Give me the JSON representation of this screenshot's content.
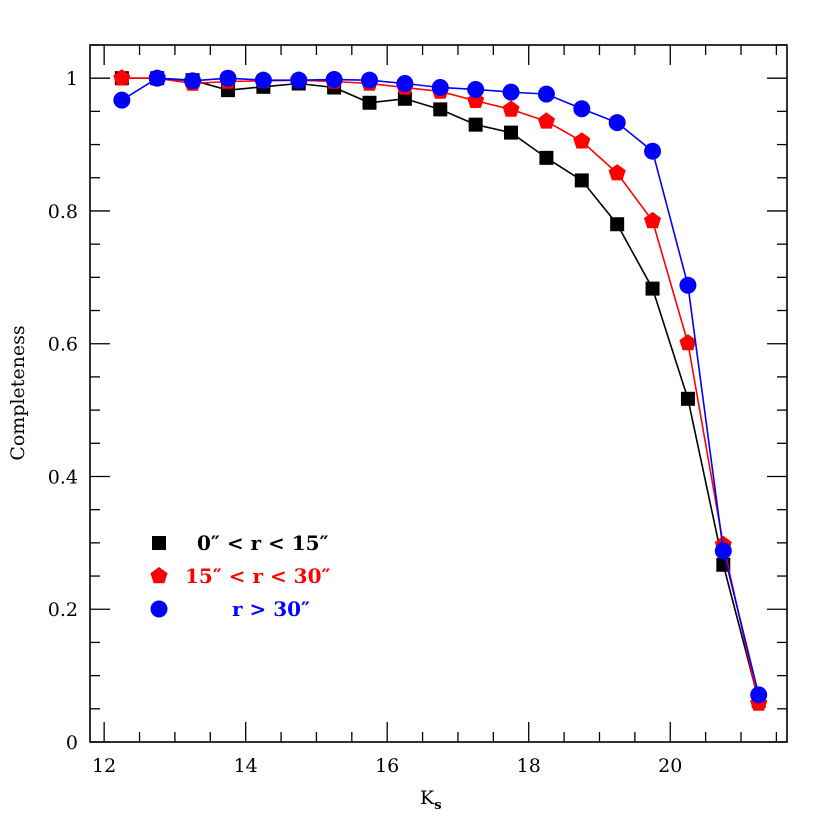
{
  "chart_data": {
    "type": "line",
    "title": "",
    "xlabel": "K",
    "xlabel_subscript": "s",
    "ylabel": "Completeness",
    "xlim": [
      11.8,
      21.65
    ],
    "ylim": [
      0,
      1.05
    ],
    "xticks": [
      12,
      14,
      16,
      18,
      20
    ],
    "yticks": [
      0,
      0.2,
      0.4,
      0.6,
      0.8,
      1
    ],
    "ytick_labels": [
      "0",
      "0.2",
      "0.4",
      "0.6",
      "0.8",
      "1"
    ],
    "grid": false,
    "legend_placement": "lower-left",
    "x": [
      12.25,
      12.75,
      13.25,
      13.75,
      14.25,
      14.75,
      15.25,
      15.75,
      16.25,
      16.75,
      17.25,
      17.75,
      18.25,
      18.75,
      19.25,
      19.75,
      20.25,
      20.75,
      21.25
    ],
    "series": [
      {
        "name": "0″ < r < 15″",
        "color": "#000000",
        "marker": "square",
        "values": [
          1.0,
          1.0,
          0.997,
          0.982,
          0.987,
          0.992,
          0.986,
          0.963,
          0.969,
          0.953,
          0.93,
          0.918,
          0.88,
          0.846,
          0.78,
          0.683,
          0.517,
          0.267,
          0.062
        ]
      },
      {
        "name": "15″ < r < 30″",
        "color": "#ff0000",
        "marker": "pentagon",
        "values": [
          1.0,
          1.0,
          0.992,
          0.995,
          0.996,
          0.997,
          0.995,
          0.992,
          0.986,
          0.98,
          0.966,
          0.953,
          0.935,
          0.905,
          0.857,
          0.785,
          0.601,
          0.297,
          0.058
        ]
      },
      {
        "name": "r > 30″",
        "color": "#0000ff",
        "marker": "circle",
        "values": [
          0.967,
          1.0,
          0.996,
          1.0,
          0.997,
          0.997,
          0.998,
          0.997,
          0.992,
          0.986,
          0.983,
          0.979,
          0.976,
          0.954,
          0.933,
          0.89,
          0.688,
          0.288,
          0.071
        ]
      }
    ]
  }
}
